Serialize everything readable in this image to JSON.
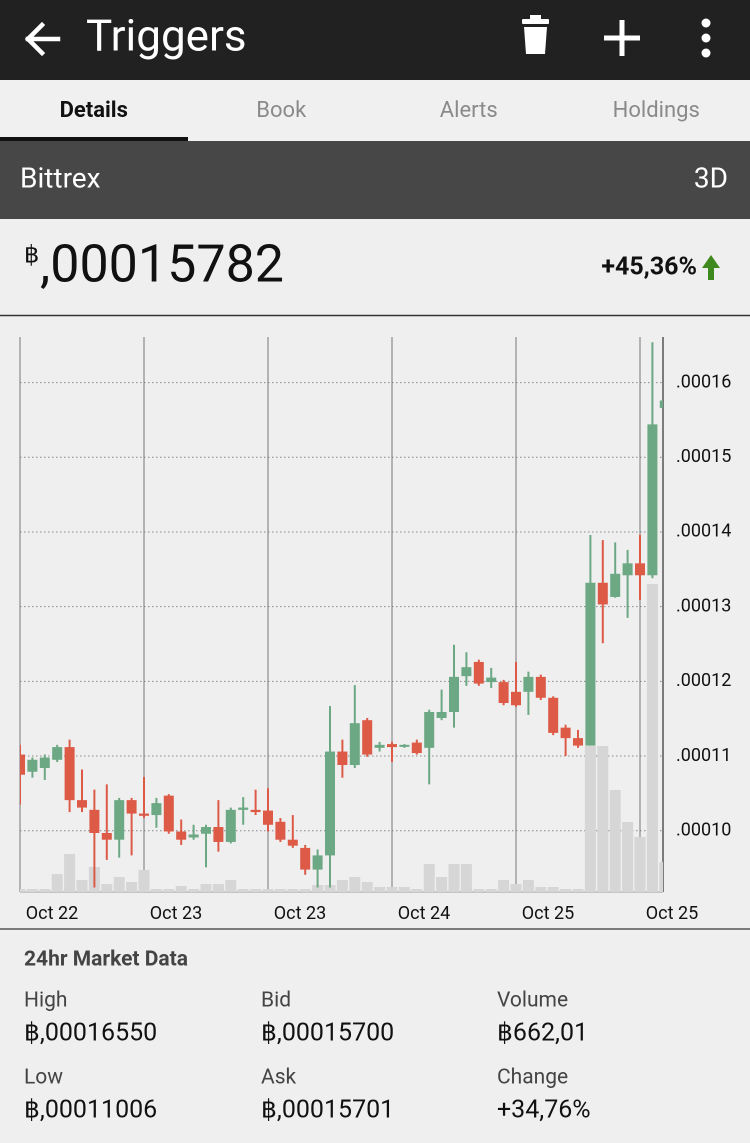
{
  "app_bar": {
    "title": "Triggers"
  },
  "tabs": [
    "Details",
    "Book",
    "Alerts",
    "Holdings"
  ],
  "exchange": {
    "name": "Bittrex",
    "period": "3D"
  },
  "price": {
    "currency": "฿",
    "value": ",00015782",
    "change": "+45,36%"
  },
  "chart_data": {
    "type": "candlestick",
    "categories": [
      "Oct 22",
      null,
      null,
      null,
      null,
      null,
      null,
      null,
      null,
      null,
      "Oct 23",
      null,
      null,
      null,
      null,
      null,
      null,
      null,
      null,
      null,
      "Oct 23",
      null,
      null,
      null,
      null,
      null,
      null,
      null,
      null,
      null,
      "Oct 24",
      null,
      null,
      null,
      null,
      null,
      null,
      null,
      null,
      null,
      "Oct 25",
      null,
      null,
      null,
      null,
      null,
      null,
      null,
      null,
      null,
      "Oct 25",
      null,
      null
    ],
    "open": [
      0.0001102,
      0.0001079,
      0.0001084,
      0.0001095,
      0.0001112,
      0.0001041,
      0.0001028,
      9.97e-05,
      9.88e-05,
      0.0001041,
      0.0001023,
      0.0001021,
      0.0001047,
      9.99e-05,
      9.91e-05,
      9.96e-05,
      0.0001005,
      9.85e-05,
      0.0001028,
      0.0001028,
      0.0001027,
      0.0001012,
      9.88e-05,
      9.77e-05,
      9.48e-05,
      9.67e-05,
      0.0001106,
      0.0001088,
      0.0001148,
      0.0001111,
      0.0001116,
      0.0001114,
      0.0001118,
      0.0001111,
      0.0001151,
      0.0001159,
      0.0001207,
      0.0001226,
      0.0001199,
      0.0001199,
      0.0001186,
      0.0001186,
      0.0001206,
      0.0001178,
      0.0001138,
      0.0001124,
      0.0001114,
      0.0001332,
      0.0001313,
      0.0001342,
      0.0001358,
      0.0001342,
      0.0001566
    ],
    "high": [
      0.0001115,
      0.0001098,
      0.0001102,
      0.0001115,
      0.0001122,
      0.0001082,
      0.0001055,
      0.0001062,
      0.0001044,
      0.0001044,
      0.0001072,
      0.0001044,
      0.0001049,
      0.0001015,
      0.0001008,
      0.0001008,
      0.0001041,
      0.0001031,
      0.0001045,
      0.0001055,
      0.0001057,
      0.0001017,
      0.0001021,
      9.81e-05,
      9.75e-05,
      0.0001167,
      0.0001122,
      0.0001195,
      0.0001151,
      0.0001119,
      0.0001119,
      0.0001116,
      0.0001122,
      0.0001162,
      0.0001189,
      0.0001249,
      0.0001239,
      0.0001229,
      0.0001218,
      0.0001202,
      0.0001226,
      0.0001213,
      0.0001209,
      0.000118,
      0.0001142,
      0.0001135,
      0.0001396,
      0.0001389,
      0.0001386,
      0.0001376,
      0.0001396,
      0.0001654,
      0.0001614
    ],
    "low": [
      0.0001035,
      0.0001071,
      0.0001068,
      0.0001092,
      0.0001025,
      0.0001025,
      9.24e-05,
      9.61e-05,
      9.64e-05,
      9.67e-05,
      0.0001017,
      0.0001004,
      9.96e-05,
      9.81e-05,
      9.88e-05,
      9.51e-05,
      9.72e-05,
      9.83e-05,
      0.0001008,
      0.0001021,
      9.99e-05,
      9.85e-05,
      9.77e-05,
      9.41e-05,
      9.24e-05,
      9.24e-05,
      0.0001071,
      0.0001084,
      0.0001099,
      0.0001106,
      0.0001092,
      0.0001111,
      0.0001102,
      0.0001062,
      0.0001148,
      0.0001138,
      0.0001194,
      0.0001194,
      0.0001191,
      0.0001168,
      0.0001166,
      0.0001155,
      0.0001175,
      0.0001128,
      0.00011,
      0.0001111,
      0.0001114,
      0.0001251,
      0.0001312,
      0.0001285,
      0.0001309,
      0.0001338,
      0.0001563
    ],
    "close": [
      0.0001075,
      0.0001095,
      0.0001098,
      0.0001112,
      0.0001041,
      0.0001031,
      9.97e-05,
      9.88e-05,
      0.0001041,
      0.0001023,
      0.000102,
      0.0001037,
      9.99e-05,
      9.88e-05,
      9.95e-05,
      0.0001005,
      9.85e-05,
      0.0001028,
      0.0001031,
      0.0001025,
      0.0001008,
      9.88e-05,
      9.8e-05,
      9.48e-05,
      9.67e-05,
      0.0001106,
      0.0001088,
      0.0001144,
      0.0001102,
      0.0001115,
      0.0001112,
      0.0001115,
      0.0001104,
      0.0001159,
      0.0001159,
      0.0001206,
      0.0001219,
      0.0001197,
      0.0001205,
      0.0001171,
      0.0001168,
      0.0001206,
      0.0001178,
      0.0001131,
      0.0001124,
      0.0001114,
      0.0001332,
      0.0001303,
      0.0001344,
      0.0001358,
      0.0001342,
      0.0001544,
      0.0001576
    ],
    "volume": [
      3,
      3,
      3,
      18,
      38,
      12,
      25,
      8,
      15,
      10,
      22,
      3,
      3,
      6,
      3,
      8,
      8,
      12,
      3,
      3,
      3,
      3,
      3,
      3,
      7,
      7,
      12,
      15,
      10,
      5,
      5,
      5,
      3,
      28,
      15,
      28,
      28,
      3,
      3,
      12,
      8,
      12,
      5,
      5,
      3,
      3,
      146,
      146,
      102,
      70,
      55,
      308,
      30
    ],
    "up_color": "#6ba883",
    "down_color": "#dd5a47",
    "volume_color": "#d6d6d6",
    "ylim": [
      9.18e-05,
      0.0001661
    ],
    "yticks": [
      {
        "value": 0.0001,
        "label": ".00010"
      },
      {
        "value": 0.00011,
        "label": ".00011"
      },
      {
        "value": 0.00012,
        "label": ".00012"
      },
      {
        "value": 0.00013,
        "label": ".00013"
      },
      {
        "value": 0.00014,
        "label": ".00014"
      },
      {
        "value": 0.00015,
        "label": ".00015"
      },
      {
        "value": 0.00016,
        "label": ".00016"
      }
    ],
    "grid": true
  },
  "market_data": {
    "title": "24hr Market Data",
    "items": [
      {
        "label": "High",
        "value": "฿,00016550"
      },
      {
        "label": "Bid",
        "value": "฿,00015700"
      },
      {
        "label": "Volume",
        "value": "฿662,01"
      },
      {
        "label": "Low",
        "value": "฿,00011006"
      },
      {
        "label": "Ask",
        "value": "฿,00015701"
      },
      {
        "label": "Change",
        "value": "+34,76%"
      }
    ]
  }
}
